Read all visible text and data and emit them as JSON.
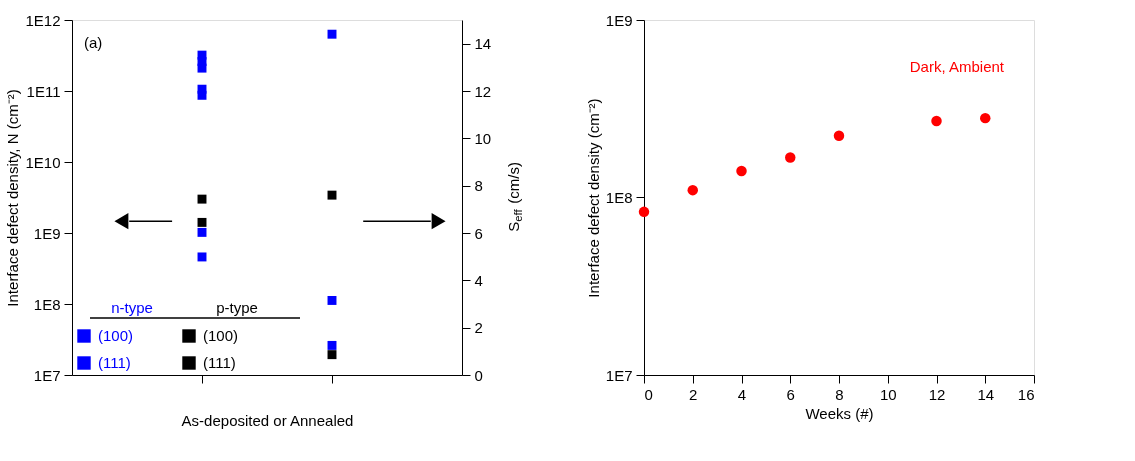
{
  "chart_data": [
    {
      "type": "scatter",
      "categories": [
        null,
        null
      ],
      "xlabel": "As-deposited or Annealed",
      "ylabel": "Interface defect density, N (cm⁻²)",
      "y2label": "S$_{eff}$ (cm/s)",
      "log": "y",
      "ylim": [
        10000000.0,
        1000000000000.0
      ],
      "yticks": [
        {
          "value": 10000000.0,
          "label": "1E7"
        },
        {
          "value": 100000000.0,
          "label": "1E8"
        },
        {
          "value": 1000000000.0,
          "label": "1E9"
        },
        {
          "value": 10000000000.0,
          "label": "1E10"
        },
        {
          "value": 100000000000.0,
          "label": "1E11"
        },
        {
          "value": 1000000000000.0,
          "label": "1E12"
        }
      ],
      "y2lim": [
        0,
        15
      ],
      "y2ticks": [
        0,
        2,
        4,
        6,
        8,
        10,
        12,
        14
      ],
      "marker": "square",
      "legend": "bottom left",
      "grid": false,
      "annotations": [
        "(a)",
        "n-type",
        "p-type"
      ],
      "series": [
        {
          "name": "(100)",
          "color": "#0000ff",
          "values": [
            1020000000.0,
            null
          ]
        },
        {
          "name": "(111)",
          "color": "#0000ff",
          "values": [
            320000000000.0,
            null
          ]
        },
        {
          "name": "(100)",
          "color": "#000000",
          "values": [
            3000000000.0,
            null
          ]
        },
        {
          "name": "(111)",
          "color": "#000000",
          "values": [
            null,
            null
          ]
        },
        {
          "color": "#0000ff",
          "values": [
            260000000000.0,
            null
          ]
        },
        {
          "color": "#0000ff",
          "values": [
            210000000000.0,
            null
          ]
        },
        {
          "color": "#0000ff",
          "values": [
            106000000000.0,
            null
          ]
        },
        {
          "color": "#0000ff",
          "values": [
            87000000000.0,
            null
          ]
        },
        {
          "color": "#0000ff",
          "values": [
            460000000.0,
            null
          ]
        },
        {
          "color": "#000000",
          "values": [
            1410000000.0,
            null
          ]
        },
        {
          "color": "#0000ff",
          "axis": "y2",
          "values": [
            null,
            14.4
          ]
        },
        {
          "color": "#0000ff",
          "axis": "y2",
          "values": [
            null,
            3.15
          ]
        },
        {
          "color": "#0000ff",
          "axis": "y2",
          "values": [
            null,
            1.25
          ]
        },
        {
          "color": "#000000",
          "axis": "y2",
          "values": [
            null,
            7.6
          ]
        },
        {
          "color": "#000000",
          "axis": "y2",
          "values": [
            null,
            0.86
          ]
        }
      ]
    },
    {
      "type": "scatter",
      "x": [
        0,
        2,
        4,
        6,
        8,
        12,
        14
      ],
      "xlabel": "Weeks (#)",
      "ylabel": "Interface defect density (cm⁻²)",
      "log": "y",
      "xlim": [
        0,
        16
      ],
      "xticks": [
        0,
        2,
        4,
        6,
        8,
        10,
        12,
        14,
        16
      ],
      "ylim": [
        10000000.0,
        1000000000.0
      ],
      "yticks": [
        {
          "value": 10000000.0,
          "label": "1E7"
        },
        {
          "value": 100000000.0,
          "label": "1E8"
        },
        {
          "value": 1000000000.0,
          "label": "1E9"
        }
      ],
      "marker": "circle",
      "grid": false,
      "annotations": [
        "Dark, Ambient"
      ],
      "series": [
        {
          "color": "#ff0000",
          "values": [
            83000000.0,
            110000000.0,
            141000000.0,
            168000000.0,
            223000000.0,
            270000000.0,
            280000000.0
          ]
        }
      ]
    }
  ]
}
